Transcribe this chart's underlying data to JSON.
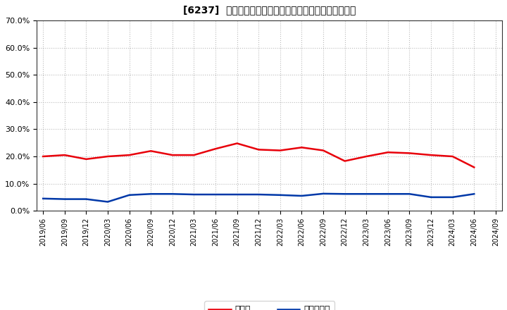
{
  "title": "[6237]  現須金、有利子負債の総資産に対する比率の推移",
  "x_labels": [
    "2019/06",
    "2019/09",
    "2019/12",
    "2020/03",
    "2020/06",
    "2020/09",
    "2020/12",
    "2021/03",
    "2021/06",
    "2021/09",
    "2021/12",
    "2022/03",
    "2022/06",
    "2022/09",
    "2022/12",
    "2023/03",
    "2023/06",
    "2023/09",
    "2023/12",
    "2024/03",
    "2024/06",
    "2024/09"
  ],
  "cash_values": [
    0.2,
    0.205,
    0.19,
    0.2,
    0.205,
    0.22,
    0.205,
    0.205,
    0.228,
    0.248,
    0.225,
    0.222,
    0.233,
    0.222,
    0.183,
    0.2,
    0.215,
    0.212,
    0.205,
    0.2,
    0.16,
    null
  ],
  "debt_values": [
    0.045,
    0.043,
    0.043,
    0.033,
    0.058,
    0.062,
    0.062,
    0.06,
    0.06,
    0.06,
    0.06,
    0.058,
    0.055,
    0.063,
    0.062,
    0.062,
    0.062,
    0.062,
    0.05,
    0.05,
    0.062,
    null
  ],
  "cash_color": "#e8000a",
  "debt_color": "#0038a8",
  "bg_color": "#ffffff",
  "plot_bg_color": "#ffffff",
  "grid_color": "#bbbbbb",
  "ylim": [
    0.0,
    0.7
  ],
  "yticks": [
    0.0,
    0.1,
    0.2,
    0.3,
    0.4,
    0.5,
    0.6,
    0.7
  ],
  "legend_cash": "現須金",
  "legend_debt": "有利子負債"
}
